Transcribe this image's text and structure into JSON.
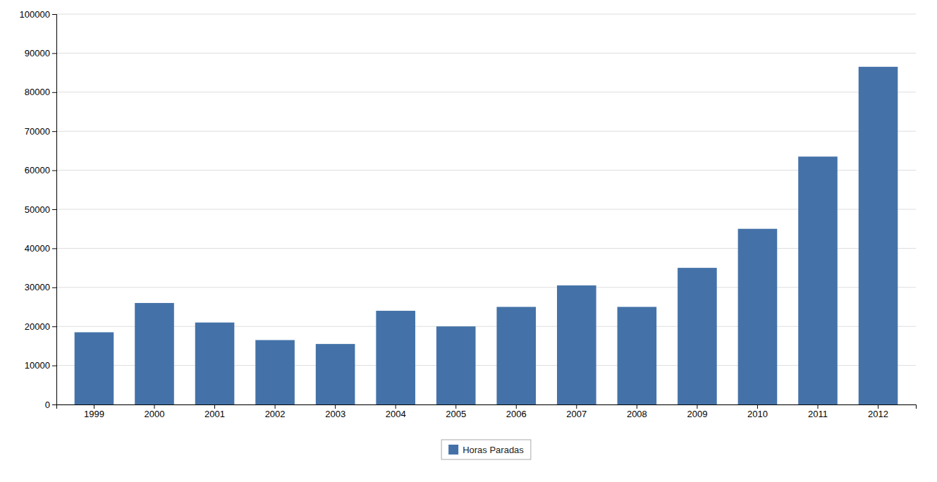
{
  "chart_data": {
    "type": "bar",
    "categories": [
      "1999",
      "2000",
      "2001",
      "2002",
      "2003",
      "2004",
      "2005",
      "2006",
      "2007",
      "2008",
      "2009",
      "2010",
      "2011",
      "2012"
    ],
    "series": [
      {
        "name": "Horas Paradas",
        "color": "#4472a8",
        "values": [
          18500,
          26000,
          21000,
          16500,
          15500,
          24000,
          20000,
          25000,
          30500,
          25000,
          35000,
          45000,
          63500,
          86500
        ]
      }
    ],
    "ylim": [
      0,
      100000
    ],
    "yticks": [
      0,
      10000,
      20000,
      30000,
      40000,
      50000,
      60000,
      70000,
      80000,
      90000,
      100000
    ],
    "grid": true,
    "legend": "bottom"
  }
}
